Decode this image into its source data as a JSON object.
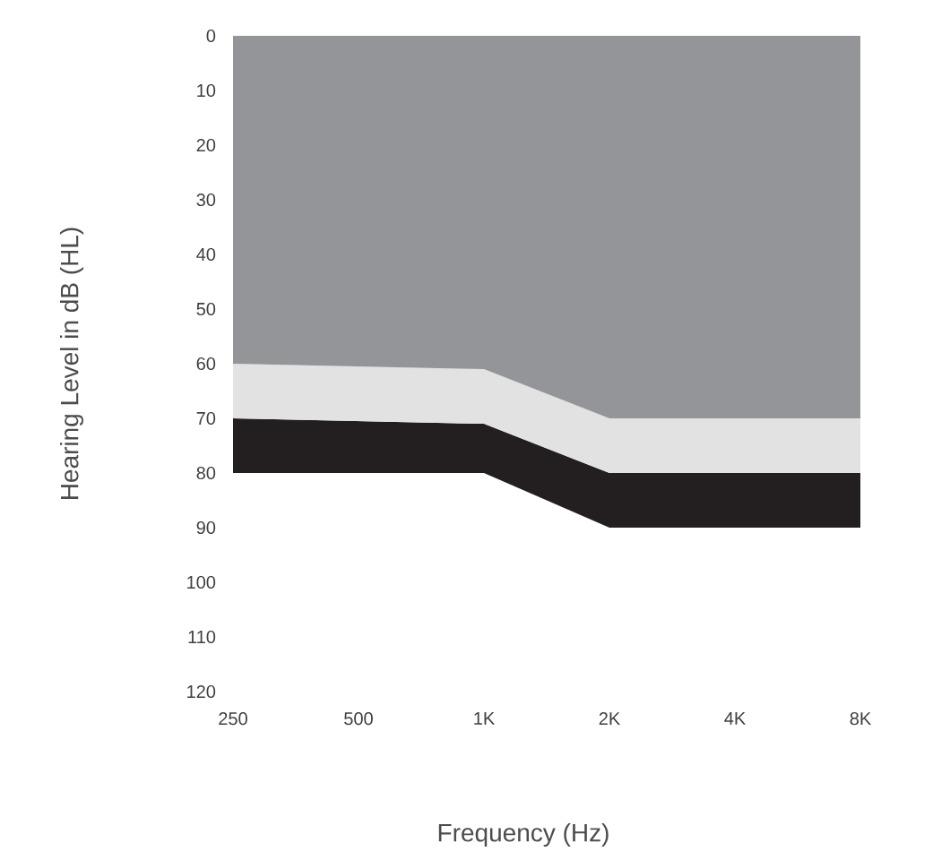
{
  "chart_data": {
    "type": "area",
    "stacked": true,
    "xlabel": "Frequency (Hz)",
    "ylabel": "Hearing Level in dB (HL)",
    "categories": [
      "250",
      "500",
      "1K",
      "2K",
      "4K",
      "8K"
    ],
    "series": [
      {
        "color": "#939598",
        "values": [
          60,
          60.5,
          61,
          70,
          70,
          70
        ]
      },
      {
        "color": "#e2e2e3",
        "values": [
          10,
          10,
          10,
          10,
          10,
          10
        ]
      },
      {
        "color": "#231f20",
        "values": [
          10,
          9.5,
          9,
          10,
          10,
          10
        ]
      }
    ],
    "ylim": [
      120,
      0
    ],
    "yticks": [
      0,
      10,
      20,
      30,
      40,
      50,
      60,
      70,
      80,
      90,
      100,
      110,
      120
    ]
  }
}
